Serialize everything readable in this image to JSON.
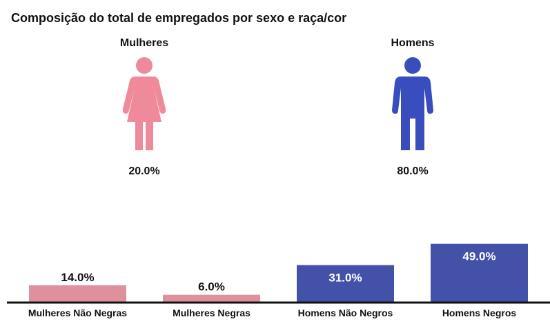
{
  "title": "Composição do total de empregados por sexo e raça/cor",
  "groups": [
    {
      "label": "Mulheres",
      "value": "20.0%",
      "icon": "woman-icon",
      "color": "#ee8a9a"
    },
    {
      "label": "Homens",
      "value": "80.0%",
      "icon": "man-icon",
      "color": "#3a4dbd"
    }
  ],
  "chart_data": {
    "type": "bar",
    "title": "Composição do total de empregados por sexo e raça/cor",
    "categories": [
      "Mulheres Não Negras",
      "Mulheres Negras",
      "Homens Não Negros",
      "Homens Negros"
    ],
    "values": [
      14.0,
      6.0,
      31.0,
      49.0
    ],
    "labels": [
      "14.0%",
      "6.0%",
      "31.0%",
      "49.0%"
    ],
    "colors": [
      "#de909c",
      "#de909c",
      "#4352a8",
      "#4352a8"
    ],
    "label_colors": [
      "#111111",
      "#111111",
      "#ffffff",
      "#ffffff"
    ],
    "ylim": [
      0,
      50
    ],
    "grid": false
  }
}
